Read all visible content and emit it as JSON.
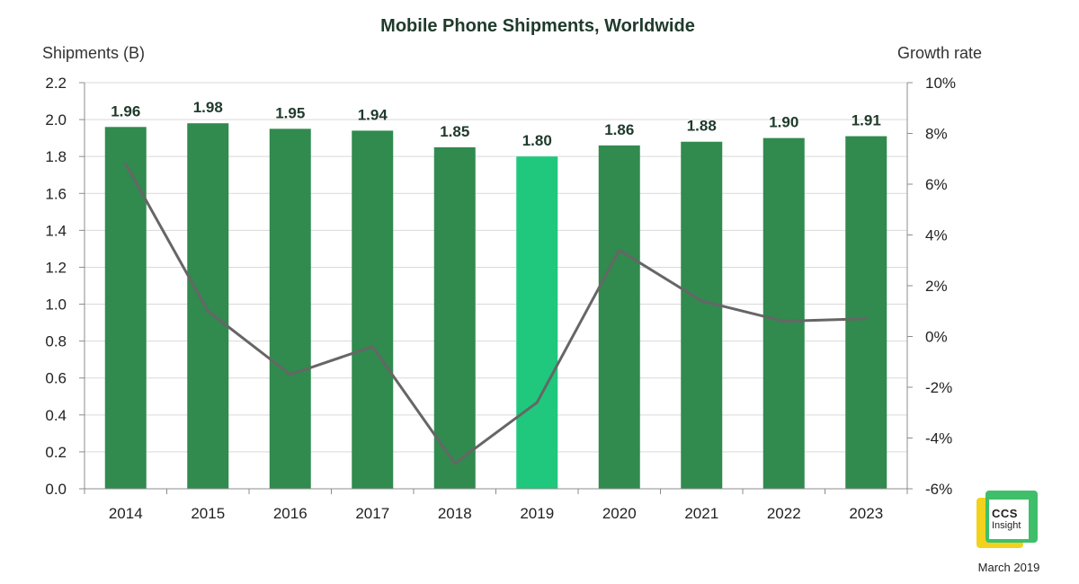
{
  "chart_data": {
    "type": "bar",
    "title": "Mobile Phone Shipments, Worldwide",
    "ylabel": "Shipments (B)",
    "y2label": "Growth rate",
    "categories": [
      "2014",
      "2015",
      "2016",
      "2017",
      "2018",
      "2019",
      "2020",
      "2021",
      "2022",
      "2023"
    ],
    "series": [
      {
        "type": "bar",
        "values": [
          1.96,
          1.98,
          1.95,
          1.94,
          1.85,
          1.8,
          1.86,
          1.88,
          1.9,
          1.91
        ],
        "color": "#318a4e",
        "highlight_index": 5,
        "highlight_color": "#1fc87c"
      },
      {
        "type": "line",
        "axis": "right",
        "values": [
          6.8,
          1.0,
          -1.5,
          -0.4,
          -5.0,
          -2.6,
          3.4,
          1.4,
          0.6,
          0.7
        ],
        "color": "#666666",
        "unit": "%"
      }
    ],
    "data_labels": [
      "1.96",
      "1.98",
      "1.95",
      "1.94",
      "1.85",
      "1.80",
      "1.86",
      "1.88",
      "1.90",
      "1.91"
    ],
    "ylim": [
      0,
      2.2
    ],
    "yticks": [
      "0.0",
      "0.2",
      "0.4",
      "0.6",
      "0.8",
      "1.0",
      "1.2",
      "1.4",
      "1.6",
      "1.8",
      "2.0",
      "2.2"
    ],
    "y2lim": [
      -6,
      10
    ],
    "y2ticks": [
      "-6%",
      "-4%",
      "-2%",
      "0%",
      "2%",
      "4%",
      "6%",
      "8%",
      "10%"
    ],
    "grid": true
  },
  "brand": {
    "logo_line1": "CCS",
    "logo_line2": "Insight",
    "date": "March 2019"
  }
}
